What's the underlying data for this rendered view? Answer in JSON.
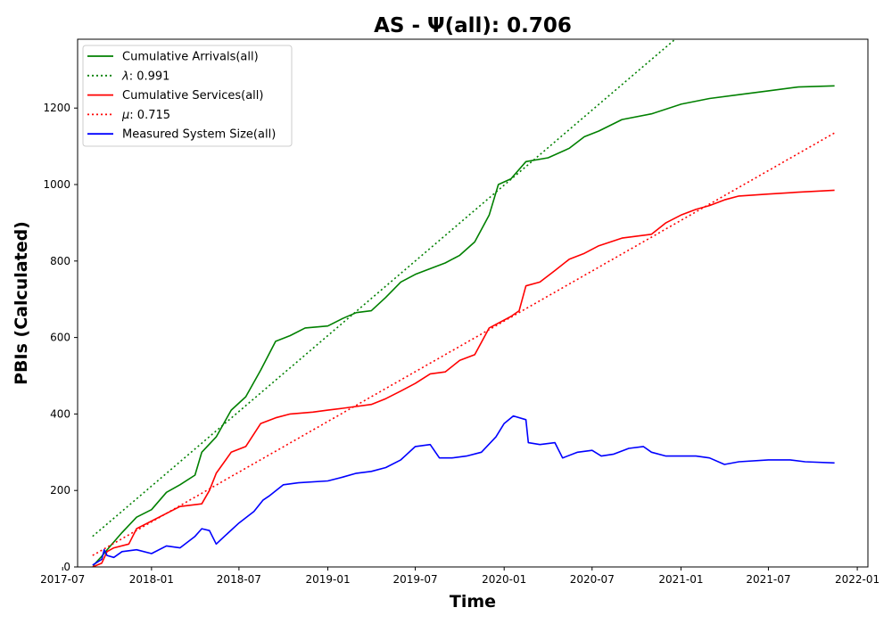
{
  "chart_data": {
    "type": "line",
    "title": "AS -  Ψ(all): 0.706",
    "xlabel": "Time",
    "ylabel": "PBIs (Calculated)",
    "xlim": [
      "2017-08-01",
      "2022-01-23"
    ],
    "ylim": [
      0,
      1380
    ],
    "x_ticks": [
      "2017-07",
      "2018-01",
      "2018-07",
      "2019-01",
      "2019-07",
      "2020-01",
      "2020-07",
      "2021-01",
      "2021-07",
      "2022-01"
    ],
    "x_tick_dates": [
      "2017-07-01",
      "2018-01-01",
      "2018-07-01",
      "2019-01-01",
      "2019-07-01",
      "2020-01-01",
      "2020-07-01",
      "2021-01-01",
      "2021-07-01",
      "2022-01-01"
    ],
    "y_ticks": [
      0,
      200,
      400,
      600,
      800,
      1000,
      1200
    ],
    "grid": false,
    "legend_position": "top-left",
    "series": [
      {
        "name": "Cumulative Arrivals(all)",
        "color": "#008000",
        "style": "solid",
        "points": [
          [
            "2017-09-02",
            3
          ],
          [
            "2017-09-20",
            28
          ],
          [
            "2017-10-08",
            55
          ],
          [
            "2017-11-01",
            90
          ],
          [
            "2017-12-01",
            130
          ],
          [
            "2018-01-01",
            150
          ],
          [
            "2018-02-01",
            195
          ],
          [
            "2018-03-01",
            215
          ],
          [
            "2018-04-01",
            240
          ],
          [
            "2018-04-15",
            300
          ],
          [
            "2018-05-15",
            340
          ],
          [
            "2018-06-15",
            410
          ],
          [
            "2018-07-15",
            445
          ],
          [
            "2018-08-15",
            515
          ],
          [
            "2018-09-15",
            590
          ],
          [
            "2018-10-15",
            605
          ],
          [
            "2018-11-15",
            625
          ],
          [
            "2019-01-01",
            630
          ],
          [
            "2019-02-01",
            650
          ],
          [
            "2019-03-01",
            665
          ],
          [
            "2019-04-01",
            670
          ],
          [
            "2019-05-01",
            705
          ],
          [
            "2019-06-01",
            745
          ],
          [
            "2019-07-01",
            765
          ],
          [
            "2019-08-01",
            780
          ],
          [
            "2019-09-01",
            795
          ],
          [
            "2019-10-01",
            815
          ],
          [
            "2019-11-01",
            850
          ],
          [
            "2019-12-01",
            920
          ],
          [
            "2019-12-20",
            1000
          ],
          [
            "2020-01-15",
            1015
          ],
          [
            "2020-02-15",
            1060
          ],
          [
            "2020-04-01",
            1070
          ],
          [
            "2020-05-15",
            1095
          ],
          [
            "2020-06-15",
            1125
          ],
          [
            "2020-07-15",
            1140
          ],
          [
            "2020-09-01",
            1170
          ],
          [
            "2020-11-01",
            1185
          ],
          [
            "2021-01-01",
            1210
          ],
          [
            "2021-03-01",
            1225
          ],
          [
            "2021-05-01",
            1235
          ],
          [
            "2021-07-01",
            1245
          ],
          [
            "2021-09-01",
            1255
          ],
          [
            "2021-11-15",
            1258
          ]
        ]
      },
      {
        "name": "λ: 0.991",
        "label_symbol": "λ",
        "label_value": ": 0.991",
        "color": "#008000",
        "style": "dotted",
        "points": [
          [
            "2017-09-01",
            80
          ],
          [
            "2020-12-20",
            1380
          ]
        ]
      },
      {
        "name": "Cumulative Services(all)",
        "color": "#ff0000",
        "style": "solid",
        "points": [
          [
            "2017-09-01",
            0
          ],
          [
            "2017-09-20",
            10
          ],
          [
            "2017-10-01",
            40
          ],
          [
            "2017-10-15",
            50
          ],
          [
            "2017-11-15",
            60
          ],
          [
            "2017-12-01",
            100
          ],
          [
            "2018-01-01",
            120
          ],
          [
            "2018-02-01",
            140
          ],
          [
            "2018-03-01",
            158
          ],
          [
            "2018-04-15",
            165
          ],
          [
            "2018-05-01",
            200
          ],
          [
            "2018-05-15",
            245
          ],
          [
            "2018-06-15",
            300
          ],
          [
            "2018-07-15",
            315
          ],
          [
            "2018-08-15",
            375
          ],
          [
            "2018-09-15",
            390
          ],
          [
            "2018-10-15",
            400
          ],
          [
            "2018-12-01",
            405
          ],
          [
            "2019-01-01",
            410
          ],
          [
            "2019-02-01",
            415
          ],
          [
            "2019-04-01",
            425
          ],
          [
            "2019-05-01",
            440
          ],
          [
            "2019-06-01",
            460
          ],
          [
            "2019-07-01",
            480
          ],
          [
            "2019-08-01",
            505
          ],
          [
            "2019-09-01",
            510
          ],
          [
            "2019-10-01",
            540
          ],
          [
            "2019-11-01",
            555
          ],
          [
            "2019-12-01",
            625
          ],
          [
            "2020-01-15",
            655
          ],
          [
            "2020-02-01",
            670
          ],
          [
            "2020-02-15",
            735
          ],
          [
            "2020-03-15",
            745
          ],
          [
            "2020-04-15",
            775
          ],
          [
            "2020-05-15",
            805
          ],
          [
            "2020-06-15",
            820
          ],
          [
            "2020-07-15",
            840
          ],
          [
            "2020-09-01",
            860
          ],
          [
            "2020-11-01",
            870
          ],
          [
            "2020-12-01",
            900
          ],
          [
            "2021-01-01",
            920
          ],
          [
            "2021-02-01",
            935
          ],
          [
            "2021-03-01",
            945
          ],
          [
            "2021-04-01",
            960
          ],
          [
            "2021-05-01",
            970
          ],
          [
            "2021-07-01",
            975
          ],
          [
            "2021-09-01",
            980
          ],
          [
            "2021-11-15",
            985
          ]
        ]
      },
      {
        "name": "μ: 0.715",
        "label_symbol": "μ",
        "label_value": ": 0.715",
        "color": "#ff0000",
        "style": "dotted",
        "points": [
          [
            "2017-09-01",
            30
          ],
          [
            "2021-11-15",
            1135
          ]
        ]
      },
      {
        "name": "Measured System Size(all)",
        "color": "#0000ff",
        "style": "solid",
        "points": [
          [
            "2017-09-01",
            5
          ],
          [
            "2017-09-20",
            20
          ],
          [
            "2017-09-25",
            45
          ],
          [
            "2017-10-01",
            30
          ],
          [
            "2017-10-15",
            25
          ],
          [
            "2017-11-01",
            40
          ],
          [
            "2017-12-01",
            45
          ],
          [
            "2018-01-01",
            35
          ],
          [
            "2018-02-01",
            55
          ],
          [
            "2018-03-01",
            50
          ],
          [
            "2018-04-01",
            80
          ],
          [
            "2018-04-15",
            100
          ],
          [
            "2018-05-01",
            95
          ],
          [
            "2018-05-15",
            60
          ],
          [
            "2018-06-01",
            80
          ],
          [
            "2018-07-01",
            115
          ],
          [
            "2018-08-01",
            145
          ],
          [
            "2018-08-20",
            175
          ],
          [
            "2018-09-01",
            185
          ],
          [
            "2018-10-01",
            215
          ],
          [
            "2018-11-01",
            220
          ],
          [
            "2019-01-01",
            225
          ],
          [
            "2019-02-01",
            235
          ],
          [
            "2019-03-01",
            245
          ],
          [
            "2019-04-01",
            250
          ],
          [
            "2019-05-01",
            260
          ],
          [
            "2019-06-01",
            280
          ],
          [
            "2019-07-01",
            315
          ],
          [
            "2019-08-01",
            320
          ],
          [
            "2019-08-20",
            285
          ],
          [
            "2019-09-15",
            285
          ],
          [
            "2019-10-15",
            290
          ],
          [
            "2019-11-15",
            300
          ],
          [
            "2019-12-15",
            340
          ],
          [
            "2020-01-01",
            375
          ],
          [
            "2020-01-20",
            395
          ],
          [
            "2020-02-15",
            385
          ],
          [
            "2020-02-20",
            325
          ],
          [
            "2020-03-15",
            320
          ],
          [
            "2020-04-15",
            325
          ],
          [
            "2020-05-01",
            285
          ],
          [
            "2020-06-01",
            300
          ],
          [
            "2020-07-01",
            305
          ],
          [
            "2020-07-20",
            290
          ],
          [
            "2020-08-15",
            295
          ],
          [
            "2020-09-15",
            310
          ],
          [
            "2020-10-15",
            315
          ],
          [
            "2020-11-01",
            300
          ],
          [
            "2020-12-01",
            290
          ],
          [
            "2021-01-01",
            290
          ],
          [
            "2021-02-01",
            290
          ],
          [
            "2021-03-01",
            285
          ],
          [
            "2021-04-01",
            268
          ],
          [
            "2021-05-01",
            275
          ],
          [
            "2021-07-01",
            280
          ],
          [
            "2021-08-15",
            280
          ],
          [
            "2021-09-15",
            275
          ],
          [
            "2021-11-15",
            272
          ]
        ]
      }
    ]
  }
}
